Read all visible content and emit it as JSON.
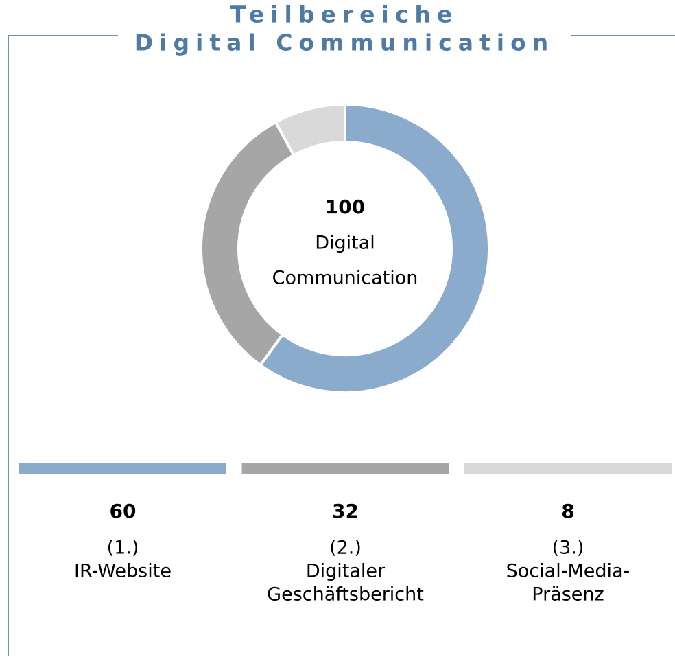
{
  "chart_data": {
    "type": "pie",
    "donut": true,
    "title": [
      "Teilbereiche",
      "Digital Communication"
    ],
    "center_value": 100,
    "center_label": [
      "Digital",
      "Communication"
    ],
    "categories": [
      [
        "IR-Website"
      ],
      [
        "Digitaler",
        "Geschäftsbericht"
      ],
      [
        "Social-Media-",
        "Präsenz"
      ]
    ],
    "ranks": [
      "(1.)",
      "(2.)",
      "(3.)"
    ],
    "values": [
      60,
      32,
      8
    ],
    "colors": [
      "#8aabcc",
      "#a6a6a6",
      "#d9d9d9"
    ]
  }
}
